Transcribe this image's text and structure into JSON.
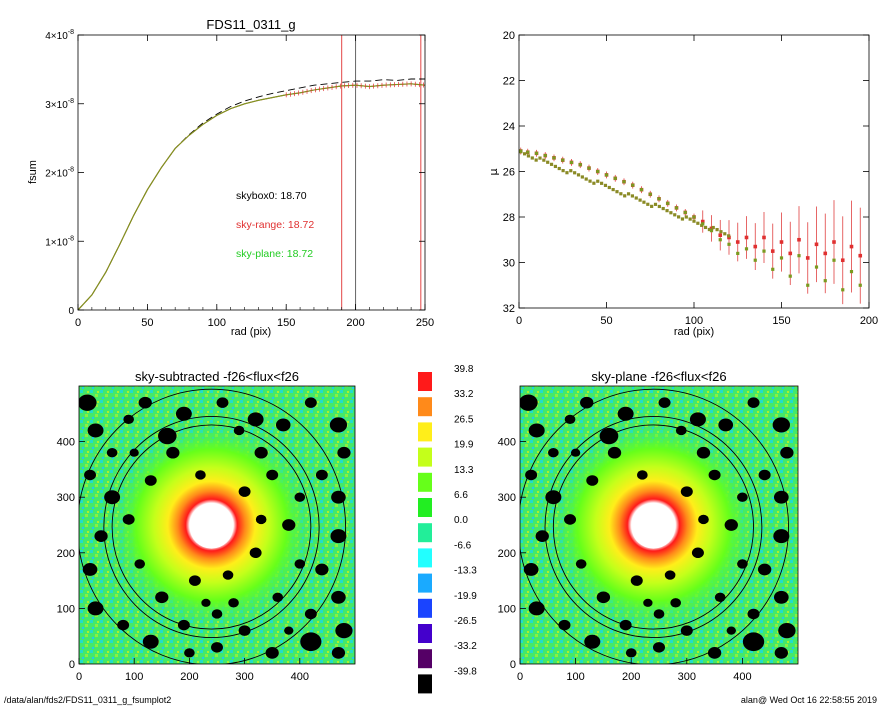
{
  "footer": {
    "left": "/data/alan/fds2/FDS11_0311_g_fsumplot2",
    "right": "alan@  Wed Oct 16 22:58:55 2019"
  },
  "chart_data": [
    {
      "id": "fsum",
      "type": "line",
      "title": "FDS11_0311_g",
      "xlabel": "rad (pix)",
      "ylabel": "fsum",
      "xlim": [
        0,
        250
      ],
      "ylim": [
        0,
        4e-08
      ],
      "xticks": [
        0,
        50,
        100,
        150,
        200,
        250
      ],
      "yticks": [
        0,
        1e-08,
        2e-08,
        3e-08,
        4e-08
      ],
      "ytick_mantissa": [
        "0",
        "1×10",
        "2×10",
        "3×10",
        "4×10"
      ],
      "ytick_exponent": [
        "",
        "-8",
        "-8",
        "-8",
        "-8"
      ],
      "vlines": [
        {
          "x": 190,
          "color": "#e03030"
        },
        {
          "x": 200,
          "color": "#555555"
        },
        {
          "x": 247,
          "color": "#e03030"
        }
      ],
      "series": [
        {
          "style": "dashed",
          "color": "#000000",
          "x": [
            0,
            10,
            20,
            30,
            40,
            50,
            60,
            70,
            80,
            90,
            100,
            110,
            120,
            130,
            140,
            150,
            160,
            170,
            180,
            190,
            200,
            210,
            220,
            230,
            240,
            250
          ],
          "y": [
            0,
            2.2e-09,
            5.5e-09,
            9.5e-09,
            1.37e-08,
            1.75e-08,
            2.07e-08,
            2.35e-08,
            2.55e-08,
            2.72e-08,
            2.85e-08,
            2.96e-08,
            3.04e-08,
            3.1e-08,
            3.15e-08,
            3.19e-08,
            3.23e-08,
            3.27e-08,
            3.29e-08,
            3.31e-08,
            3.33e-08,
            3.33e-08,
            3.35e-08,
            3.34e-08,
            3.36e-08,
            3.36e-08
          ]
        },
        {
          "style": "solid",
          "color": "#e03030",
          "x": [
            0,
            10,
            20,
            30,
            40,
            50,
            60,
            70,
            80,
            90,
            100,
            110,
            120,
            130,
            140,
            150,
            160,
            170,
            180,
            190,
            200,
            210,
            220,
            230,
            240,
            250
          ],
          "y": [
            0,
            2.2e-09,
            5.5e-09,
            9.5e-09,
            1.37e-08,
            1.75e-08,
            2.07e-08,
            2.35e-08,
            2.54e-08,
            2.7e-08,
            2.83e-08,
            2.93e-08,
            3e-08,
            3.05e-08,
            3.09e-08,
            3.13e-08,
            3.16e-08,
            3.2e-08,
            3.23e-08,
            3.26e-08,
            3.27e-08,
            3.25e-08,
            3.27e-08,
            3.28e-08,
            3.29e-08,
            3.27e-08
          ]
        },
        {
          "style": "solid",
          "color": "#7a9a20",
          "x": [
            0,
            10,
            20,
            30,
            40,
            50,
            60,
            70,
            80,
            90,
            100,
            110,
            120,
            130,
            140,
            150,
            160,
            170,
            180,
            190,
            200,
            210,
            220,
            230,
            240,
            250
          ],
          "y": [
            0,
            2.2e-09,
            5.5e-09,
            9.5e-09,
            1.37e-08,
            1.75e-08,
            2.07e-08,
            2.35e-08,
            2.54e-08,
            2.7e-08,
            2.83e-08,
            2.93e-08,
            3e-08,
            3.05e-08,
            3.09e-08,
            3.13e-08,
            3.16e-08,
            3.2e-08,
            3.23e-08,
            3.26e-08,
            3.27e-08,
            3.25e-08,
            3.27e-08,
            3.28e-08,
            3.29e-08,
            3.27e-08
          ]
        }
      ],
      "annotations": [
        {
          "text": "skybox0: 18.70",
          "color": "#000000"
        },
        {
          "text": "sky-range: 18.72",
          "color": "#e03030"
        },
        {
          "text": "sky-plane: 18.72",
          "color": "#22cc22"
        }
      ]
    },
    {
      "id": "mu",
      "type": "scatter",
      "title": "",
      "xlabel": "rad (pix)",
      "ylabel": "μ",
      "xlim": [
        0,
        200
      ],
      "ylim": [
        32,
        20
      ],
      "xticks": [
        0,
        50,
        100,
        150,
        200
      ],
      "yticks": [
        20,
        22,
        24,
        26,
        28,
        30,
        32
      ],
      "series": [
        {
          "color": "#7a9a20",
          "x": [
            1,
            5,
            10,
            15,
            20,
            25,
            30,
            35,
            40,
            45,
            50,
            55,
            60,
            65,
            70,
            75,
            80,
            85,
            90,
            95,
            100,
            105,
            110,
            115,
            120,
            125,
            130,
            135,
            140,
            145,
            150,
            155,
            160,
            165,
            170,
            175,
            180,
            185,
            190,
            195
          ],
          "y": [
            25.1,
            25.15,
            25.2,
            25.3,
            25.4,
            25.5,
            25.6,
            25.7,
            25.85,
            26.0,
            26.15,
            26.3,
            26.45,
            26.6,
            26.8,
            27.0,
            27.2,
            27.4,
            27.6,
            27.8,
            28.0,
            28.3,
            28.6,
            29.0,
            29.2,
            29.6,
            29.4,
            29.9,
            29.5,
            30.3,
            29.8,
            30.6,
            29.7,
            31.0,
            30.2,
            30.8,
            29.9,
            31.2,
            30.4,
            31.0
          ]
        },
        {
          "color": "#e03030",
          "x": [
            1,
            5,
            10,
            15,
            20,
            25,
            30,
            35,
            40,
            45,
            50,
            55,
            60,
            65,
            70,
            75,
            80,
            85,
            90,
            95,
            100,
            105,
            110,
            115,
            120,
            125,
            130,
            135,
            140,
            145,
            150,
            155,
            160,
            165,
            170,
            175,
            180,
            185,
            190,
            195
          ],
          "y": [
            25.1,
            25.15,
            25.2,
            25.3,
            25.4,
            25.5,
            25.6,
            25.7,
            25.85,
            26.0,
            26.15,
            26.3,
            26.45,
            26.6,
            26.8,
            27.0,
            27.2,
            27.4,
            27.6,
            27.8,
            28.0,
            28.2,
            28.5,
            28.8,
            28.9,
            29.1,
            28.9,
            29.3,
            28.9,
            29.5,
            29.1,
            29.6,
            29.0,
            29.8,
            29.2,
            29.6,
            29.1,
            29.9,
            29.3,
            29.7
          ]
        }
      ]
    },
    {
      "id": "img-left",
      "type": "heatmap",
      "title": "sky-subtracted -f26<flux<f26",
      "xlim": [
        0,
        500
      ],
      "ylim": [
        0,
        500
      ],
      "xticks": [
        0,
        100,
        200,
        300,
        400
      ],
      "yticks": [
        0,
        100,
        200,
        300,
        400
      ],
      "center": [
        240,
        250
      ],
      "ring_radii": [
        180,
        195,
        243
      ]
    },
    {
      "id": "colorbar",
      "type": "colorbar",
      "levels": [
        {
          "label": "39.8",
          "color": "#ff1a1a"
        },
        {
          "label": "33.2",
          "color": "#ff8a1a"
        },
        {
          "label": "26.5",
          "color": "#ffee1a"
        },
        {
          "label": "19.9",
          "color": "#c4ff1a"
        },
        {
          "label": "13.3",
          "color": "#66ff1a"
        },
        {
          "label": "6.6",
          "color": "#22ee22"
        },
        {
          "label": "0.0",
          "color": "#22ee99"
        },
        {
          "label": "-6.6",
          "color": "#22ffff"
        },
        {
          "label": "-13.3",
          "color": "#1aaaff"
        },
        {
          "label": "-19.9",
          "color": "#1a44ff"
        },
        {
          "label": "-26.5",
          "color": "#4400cc"
        },
        {
          "label": "-33.2",
          "color": "#550066"
        },
        {
          "label": "-39.8",
          "color": "#000000"
        }
      ]
    },
    {
      "id": "img-right",
      "type": "heatmap",
      "title": "sky-plane -f26<flux<f26",
      "xlim": [
        0,
        500
      ],
      "ylim": [
        0,
        500
      ],
      "xticks": [
        0,
        100,
        200,
        300,
        400
      ],
      "yticks": [
        0,
        100,
        200,
        300,
        400
      ],
      "center": [
        240,
        250
      ],
      "ring_radii": [
        180,
        195,
        243
      ]
    }
  ]
}
